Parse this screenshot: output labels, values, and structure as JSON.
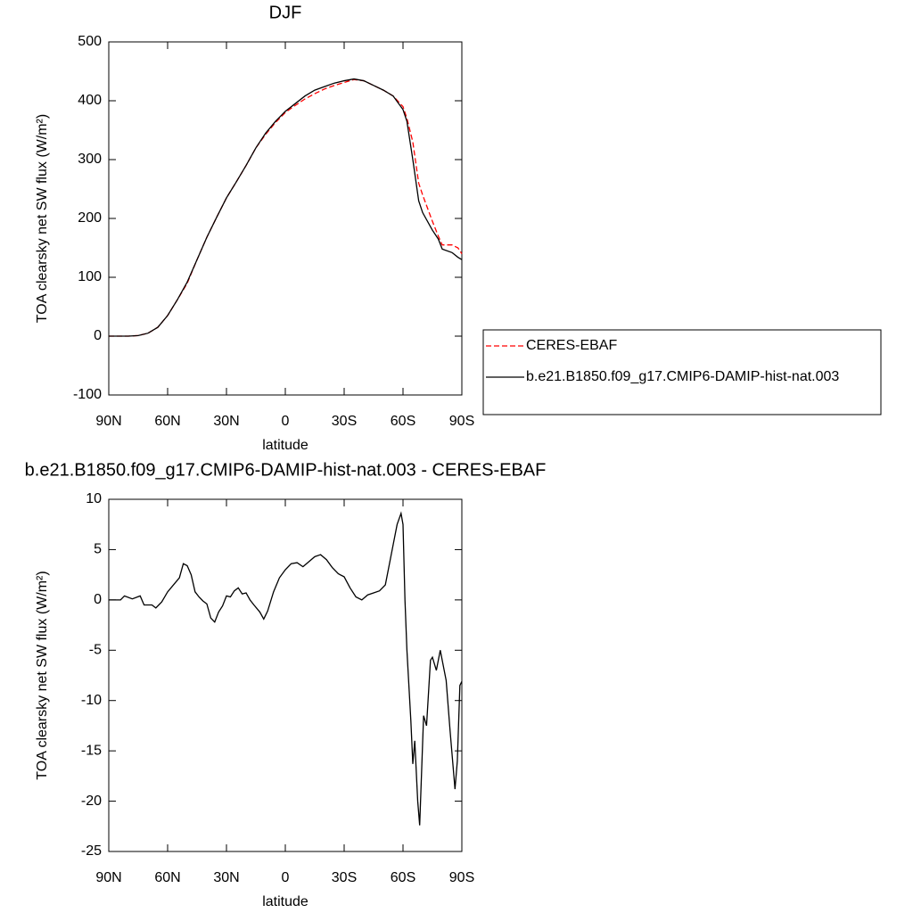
{
  "chart_data": [
    {
      "type": "line",
      "title": "DJF",
      "ylabel": "TOA clearsky net SW flux (W/m²)",
      "xlabel": "latitude",
      "x": [
        90,
        80,
        75,
        70,
        65,
        60,
        55,
        50,
        45,
        40,
        35,
        30,
        25,
        20,
        15,
        10,
        5,
        0,
        -5,
        -10,
        -15,
        -20,
        -25,
        -30,
        -35,
        -40,
        -45,
        -50,
        -55,
        -60,
        -62,
        -65,
        -68,
        -70,
        -75,
        -78,
        -80,
        -85,
        -88,
        -90
      ],
      "series": [
        {
          "name": "CERES-EBAF",
          "color": "#ff0000",
          "dashed": true,
          "values": [
            0,
            0,
            1,
            5,
            15,
            35,
            62,
            90,
            130,
            168,
            202,
            235,
            262,
            290,
            320,
            343,
            363,
            380,
            392,
            403,
            412,
            420,
            426,
            431,
            436,
            434,
            426,
            418,
            408,
            390,
            370,
            330,
            260,
            240,
            195,
            170,
            155,
            155,
            150,
            140
          ]
        },
        {
          "name": "b.e21.B1850.f09_g17.CMIP6-DAMIP-hist-nat.003",
          "color": "#000000",
          "dashed": false,
          "values": [
            0,
            0,
            1,
            5,
            15,
            35,
            62,
            92,
            130,
            168,
            202,
            235,
            262,
            290,
            320,
            345,
            365,
            382,
            395,
            408,
            418,
            424,
            430,
            434,
            437,
            434,
            426,
            418,
            408,
            385,
            365,
            300,
            230,
            210,
            180,
            165,
            148,
            142,
            134,
            130
          ]
        }
      ],
      "xlim": [
        90,
        -90
      ],
      "xticks": [
        {
          "value": 90,
          "label": "90N"
        },
        {
          "value": 60,
          "label": "60N"
        },
        {
          "value": 30,
          "label": "30N"
        },
        0,
        {
          "value": -30,
          "label": "30S"
        },
        {
          "value": -60,
          "label": "60S"
        },
        {
          "value": -90,
          "label": "90S"
        }
      ],
      "ylim": [
        -100,
        500
      ],
      "yticks": [
        -100,
        0,
        100,
        200,
        300,
        400,
        500
      ]
    },
    {
      "type": "line",
      "title": "b.e21.B1850.f09_g17.CMIP6-DAMIP-hist-nat.003 - CERES-EBAF",
      "ylabel": "TOA clearsky net SW flux (W/m²)",
      "xlabel": "latitude",
      "x": [
        90,
        84,
        82,
        78,
        74,
        72,
        68,
        66,
        63,
        60,
        57,
        54,
        52,
        50,
        48,
        46,
        44,
        42,
        40,
        38,
        36,
        34,
        32,
        30,
        28,
        26,
        24,
        22,
        20,
        18,
        16,
        13,
        11,
        9,
        6,
        3,
        0,
        -3,
        -6,
        -9,
        -12,
        -15,
        -18,
        -21,
        -24,
        -27,
        -30,
        -33,
        -36,
        -39,
        -42,
        -45,
        -48,
        -51,
        -53,
        -55,
        -57,
        -59,
        -60,
        -61,
        -62,
        -64,
        -65,
        -66,
        -67.5,
        -68.5,
        -70.5,
        -72,
        -74,
        -75,
        -77,
        -79,
        -80.5,
        -82,
        -84,
        -86.5,
        -87.7,
        -89,
        -90
      ],
      "values": [
        0,
        0,
        0.4,
        0.1,
        0.4,
        -0.5,
        -0.5,
        -0.8,
        -0.2,
        0.8,
        1.5,
        2.2,
        3.6,
        3.4,
        2.5,
        0.8,
        0.3,
        -0.1,
        -0.4,
        -1.8,
        -2.2,
        -1.2,
        -0.6,
        0.4,
        0.3,
        0.9,
        1.2,
        0.6,
        0.7,
        0,
        -0.5,
        -1.2,
        -1.9,
        -1.1,
        0.8,
        2.2,
        3.0,
        3.6,
        3.7,
        3.3,
        3.8,
        4.3,
        4.5,
        4.0,
        3.2,
        2.6,
        2.3,
        1.2,
        0.3,
        0,
        0.5,
        0.7,
        0.9,
        1.5,
        3.5,
        5.5,
        7.5,
        8.6,
        7.5,
        0,
        -5,
        -12,
        -16.3,
        -14,
        -20,
        -22.4,
        -11.5,
        -12.5,
        -6,
        -5.7,
        -7,
        -5,
        -6.5,
        -8,
        -13,
        -18.8,
        -16,
        -8.5,
        -8.1
      ],
      "color": "#000000",
      "xlim": [
        90,
        -90
      ],
      "xticks": [
        {
          "value": 90,
          "label": "90N"
        },
        {
          "value": 60,
          "label": "60N"
        },
        {
          "value": 30,
          "label": "30N"
        },
        0,
        {
          "value": -30,
          "label": "30S"
        },
        {
          "value": -60,
          "label": "60S"
        },
        {
          "value": -90,
          "label": "90S"
        }
      ],
      "ylim": [
        -25,
        10
      ],
      "yticks": [
        -25,
        -20,
        -15,
        -10,
        -5,
        0,
        5,
        10
      ]
    }
  ]
}
